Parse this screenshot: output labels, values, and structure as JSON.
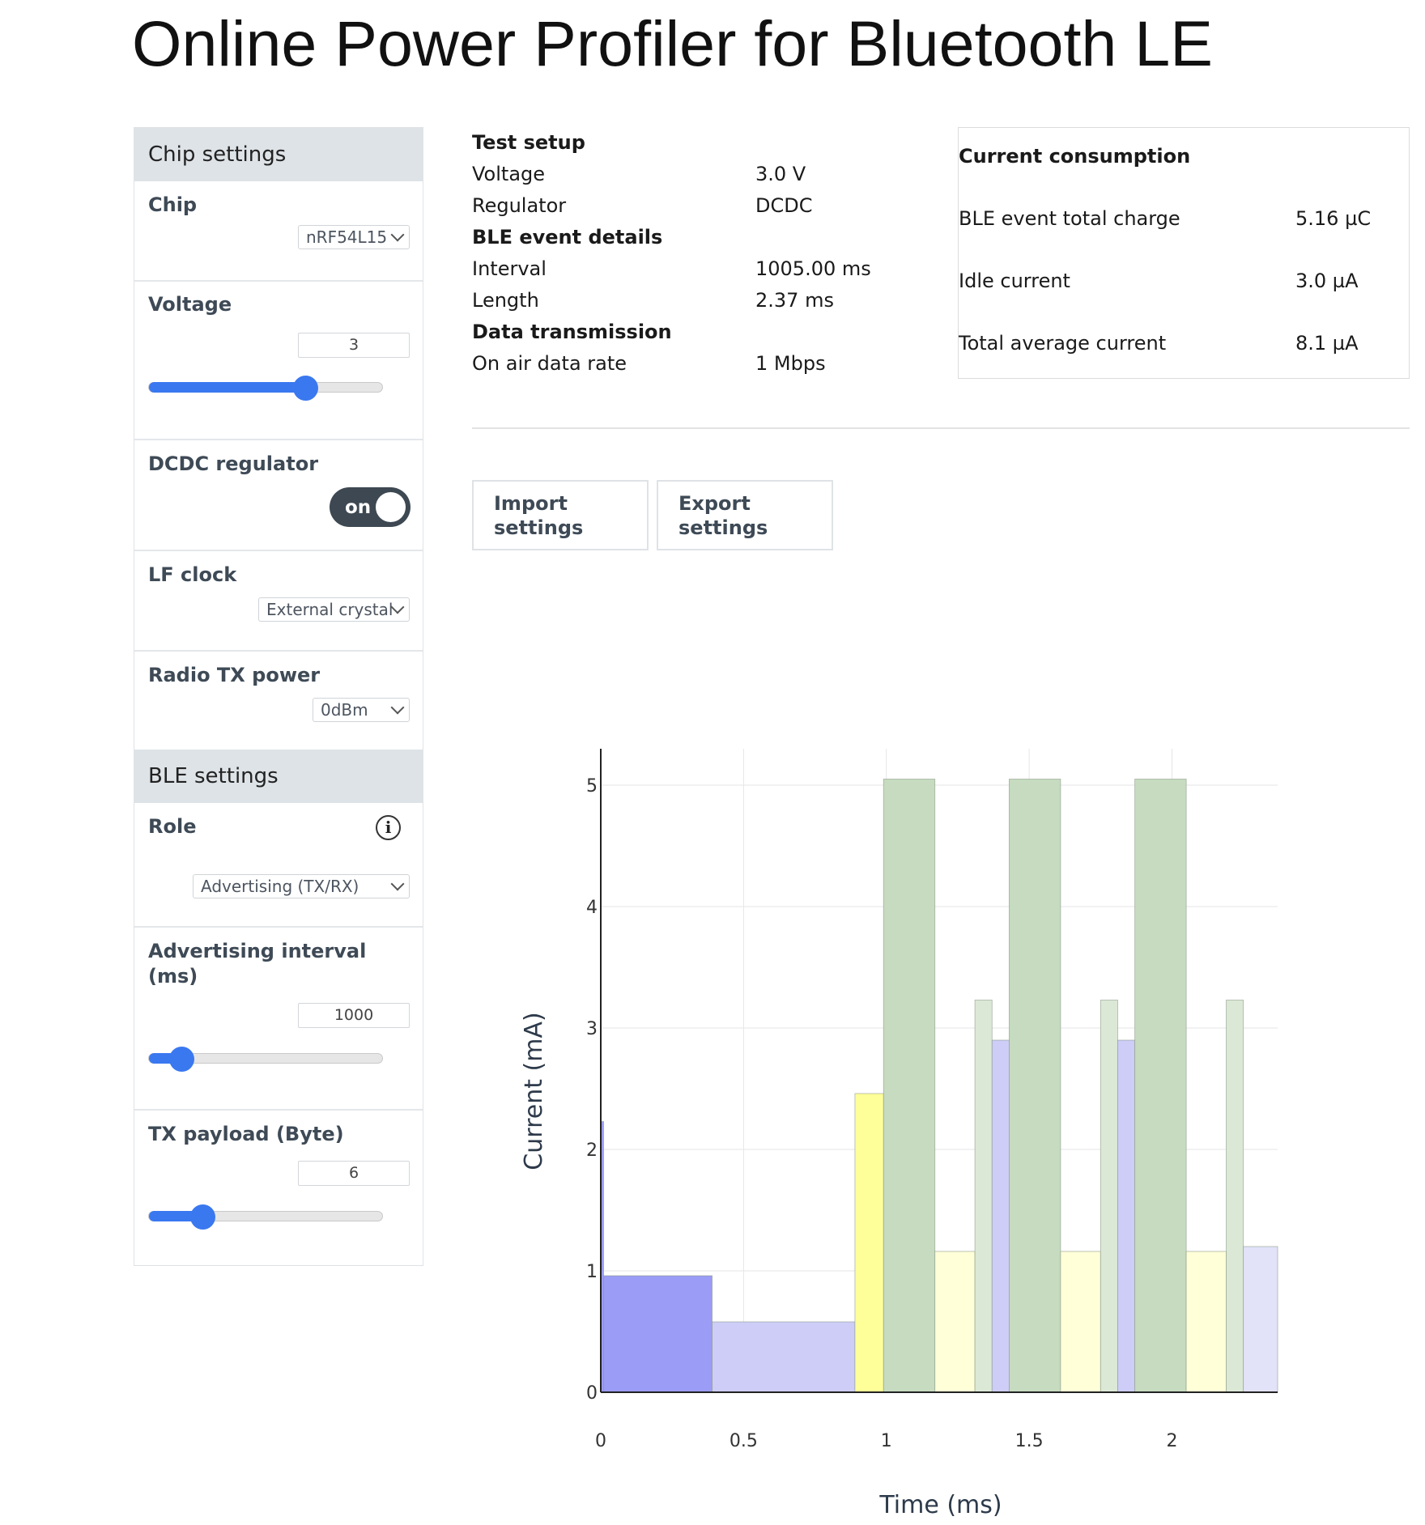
{
  "title": "Online Power Profiler for Bluetooth LE",
  "sidebar": {
    "chip_settings_header": "Chip settings",
    "chip": {
      "label": "Chip",
      "value": "nRF54L15"
    },
    "voltage": {
      "label": "Voltage",
      "value": "3",
      "slider_fraction": 0.67
    },
    "dcdc": {
      "label": "DCDC regulator",
      "state": "on"
    },
    "lf_clock": {
      "label": "LF clock",
      "value": "External crystal"
    },
    "tx_power": {
      "label": "Radio TX power",
      "value": "0dBm"
    },
    "ble_settings_header": "BLE settings",
    "role": {
      "label": "Role",
      "value": "Advertising (TX/RX)"
    },
    "adv_interval": {
      "label_line1": "Advertising interval",
      "label_line2": "(ms)",
      "value": "1000",
      "slider_fraction": 0.14
    },
    "tx_payload": {
      "label": "TX payload (Byte)",
      "value": "6",
      "slider_fraction": 0.23
    }
  },
  "test_setup": {
    "rows": [
      {
        "label": "Test setup",
        "value": "",
        "bold": true
      },
      {
        "label": "Voltage",
        "value": "3.0 V",
        "bold": false
      },
      {
        "label": "Regulator",
        "value": "DCDC",
        "bold": false
      },
      {
        "label": "BLE event details",
        "value": "",
        "bold": true
      },
      {
        "label": "Interval",
        "value": "1005.00 ms",
        "bold": false
      },
      {
        "label": "Length",
        "value": "2.37 ms",
        "bold": false
      },
      {
        "label": "Data transmission",
        "value": "",
        "bold": true
      },
      {
        "label": "On air data rate",
        "value": "1 Mbps",
        "bold": false
      }
    ]
  },
  "current_consumption": {
    "title": "Current consumption",
    "rows": [
      {
        "label": "BLE event total charge",
        "value": "5.16 µC"
      },
      {
        "label": "Idle current",
        "value": "3.0 µA"
      },
      {
        "label": "Total average current",
        "value": "8.1 µA"
      }
    ]
  },
  "buttons": {
    "import_line1": "Import",
    "import_line2": "settings",
    "export_line1": "Export",
    "export_line2": "settings"
  },
  "chart_data": {
    "type": "bar",
    "xlabel": "Time (ms)",
    "ylabel": "Current (mA)",
    "xlim": [
      0,
      2.37
    ],
    "ylim": [
      0,
      5.3
    ],
    "xticks": [
      "0",
      "0.5",
      "1",
      "1.5",
      "2"
    ],
    "xtick_values": [
      0,
      0.5,
      1,
      1.5,
      2
    ],
    "yticks": [
      "0",
      "1",
      "2",
      "3",
      "4",
      "5"
    ],
    "ytick_values": [
      0,
      1,
      2,
      3,
      4,
      5
    ],
    "colors": {
      "blue": "#9b9cf5",
      "lightblue": "#cdcdf7",
      "palelavender": "#e2e2f9",
      "yellow": "#ffff99",
      "paleyellow": "#ffffd8",
      "green": "#c6dbbf",
      "palegreen": "#dce8d6"
    },
    "segments": [
      {
        "x0": 0.0,
        "x1": 0.01,
        "y": 2.23,
        "color": "blue"
      },
      {
        "x0": 0.01,
        "x1": 0.39,
        "y": 0.96,
        "color": "blue"
      },
      {
        "x0": 0.39,
        "x1": 0.89,
        "y": 0.58,
        "color": "lightblue"
      },
      {
        "x0": 0.89,
        "x1": 0.99,
        "y": 2.46,
        "color": "yellow"
      },
      {
        "x0": 0.99,
        "x1": 1.17,
        "y": 5.05,
        "color": "green"
      },
      {
        "x0": 1.17,
        "x1": 1.31,
        "y": 1.16,
        "color": "paleyellow"
      },
      {
        "x0": 1.31,
        "x1": 1.37,
        "y": 3.23,
        "color": "palegreen"
      },
      {
        "x0": 1.37,
        "x1": 1.43,
        "y": 2.9,
        "color": "lightblue"
      },
      {
        "x0": 1.43,
        "x1": 1.61,
        "y": 5.05,
        "color": "green"
      },
      {
        "x0": 1.61,
        "x1": 1.75,
        "y": 1.16,
        "color": "paleyellow"
      },
      {
        "x0": 1.75,
        "x1": 1.81,
        "y": 3.23,
        "color": "palegreen"
      },
      {
        "x0": 1.81,
        "x1": 1.87,
        "y": 2.9,
        "color": "lightblue"
      },
      {
        "x0": 1.87,
        "x1": 2.05,
        "y": 5.05,
        "color": "green"
      },
      {
        "x0": 2.05,
        "x1": 2.19,
        "y": 1.16,
        "color": "paleyellow"
      },
      {
        "x0": 2.19,
        "x1": 2.25,
        "y": 3.23,
        "color": "palegreen"
      },
      {
        "x0": 2.25,
        "x1": 2.37,
        "y": 1.2,
        "color": "palelavender"
      }
    ]
  }
}
